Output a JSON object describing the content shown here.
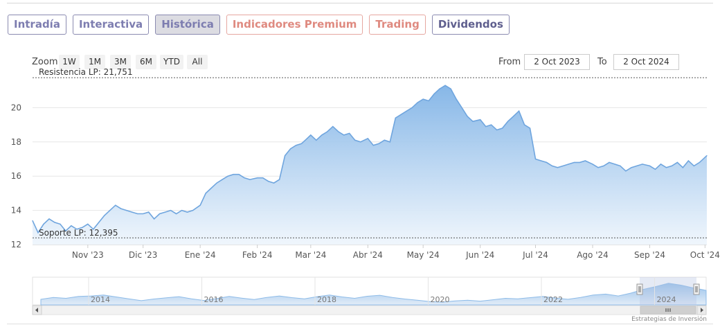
{
  "tabs": [
    {
      "label": "Intradía"
    },
    {
      "label": "Interactiva"
    },
    {
      "label": "Histórica",
      "active": true
    },
    {
      "label": "Indicadores Premium"
    },
    {
      "label": "Trading"
    },
    {
      "label": "Dividendos"
    }
  ],
  "zoom": {
    "label": "Zoom",
    "buttons": [
      "1W",
      "1M",
      "3M",
      "6M",
      "YTD",
      "All"
    ]
  },
  "range": {
    "from_label": "From",
    "from_value": "2 Oct 2023",
    "to_label": "To",
    "to_value": "2 Oct 2024"
  },
  "credits": "Estrategias de Inversión",
  "colors": {
    "series_line": "#6fa5de",
    "area_top": "#80b3e6",
    "area_bottom": "#eef5fc",
    "tab_blue": "#7d7db0",
    "tab_salmon": "#df8a80",
    "navigator_mask": "#b4c3e1"
  },
  "chart_data": {
    "type": "area",
    "title": "",
    "xlabel": "",
    "ylabel": "",
    "ylim": [
      12,
      22
    ],
    "yticks": [
      12,
      14,
      16,
      18,
      20
    ],
    "ytick_labels": [
      "12",
      "14",
      "16",
      "18",
      "20"
    ],
    "xlim": [
      "2023-10-02",
      "2024-10-02"
    ],
    "xticks": [
      "2023-11-01",
      "2023-12-01",
      "2024-01-01",
      "2024-02-01",
      "2024-03-01",
      "2024-04-01",
      "2024-05-01",
      "2024-06-01",
      "2024-07-01",
      "2024-08-01",
      "2024-09-01",
      "2024-10-01"
    ],
    "xtick_labels": [
      "Nov '23",
      "Dic '23",
      "Ene '24",
      "Feb '24",
      "Mar '24",
      "Abr '24",
      "May '24",
      "Jun '24",
      "Jul '24",
      "Ago '24",
      "Sep '24",
      "Oct '24"
    ],
    "grid": true,
    "legend": "none",
    "reference_lines": [
      {
        "label": "Resistencia LP: 21,751",
        "value": 21.751
      },
      {
        "label": "Soporte LP: 12,395",
        "value": 12.395
      }
    ],
    "series": [
      {
        "x": [
          "2023-10-02",
          "2023-10-05",
          "2023-10-08",
          "2023-10-11",
          "2023-10-14",
          "2023-10-17",
          "2023-10-20",
          "2023-10-23",
          "2023-10-26",
          "2023-10-29",
          "2023-11-01",
          "2023-11-04",
          "2023-11-07",
          "2023-11-10",
          "2023-11-13",
          "2023-11-16",
          "2023-11-19",
          "2023-11-22",
          "2023-11-25",
          "2023-11-28",
          "2023-12-01",
          "2023-12-04",
          "2023-12-07",
          "2023-12-10",
          "2023-12-13",
          "2023-12-16",
          "2023-12-19",
          "2023-12-22",
          "2023-12-25",
          "2023-12-28",
          "2024-01-01",
          "2024-01-04",
          "2024-01-07",
          "2024-01-10",
          "2024-01-13",
          "2024-01-16",
          "2024-01-19",
          "2024-01-22",
          "2024-01-25",
          "2024-01-28",
          "2024-02-01",
          "2024-02-04",
          "2024-02-07",
          "2024-02-10",
          "2024-02-13",
          "2024-02-16",
          "2024-02-19",
          "2024-02-22",
          "2024-02-25",
          "2024-02-28",
          "2024-03-01",
          "2024-03-04",
          "2024-03-07",
          "2024-03-10",
          "2024-03-13",
          "2024-03-16",
          "2024-03-19",
          "2024-03-22",
          "2024-03-25",
          "2024-03-28",
          "2024-04-01",
          "2024-04-04",
          "2024-04-07",
          "2024-04-10",
          "2024-04-13",
          "2024-04-16",
          "2024-04-19",
          "2024-04-22",
          "2024-04-25",
          "2024-04-28",
          "2024-05-01",
          "2024-05-04",
          "2024-05-07",
          "2024-05-10",
          "2024-05-13",
          "2024-05-16",
          "2024-05-19",
          "2024-05-22",
          "2024-05-25",
          "2024-05-28",
          "2024-06-01",
          "2024-06-04",
          "2024-06-07",
          "2024-06-10",
          "2024-06-13",
          "2024-06-16",
          "2024-06-19",
          "2024-06-22",
          "2024-06-25",
          "2024-06-28",
          "2024-07-01",
          "2024-07-04",
          "2024-07-07",
          "2024-07-10",
          "2024-07-13",
          "2024-07-16",
          "2024-07-19",
          "2024-07-22",
          "2024-07-25",
          "2024-07-28",
          "2024-08-01",
          "2024-08-04",
          "2024-08-07",
          "2024-08-10",
          "2024-08-13",
          "2024-08-16",
          "2024-08-19",
          "2024-08-22",
          "2024-08-25",
          "2024-08-28",
          "2024-09-01",
          "2024-09-04",
          "2024-09-07",
          "2024-09-10",
          "2024-09-13",
          "2024-09-16",
          "2024-09-19",
          "2024-09-22",
          "2024-09-25",
          "2024-09-28",
          "2024-10-02"
        ],
        "y": [
          13.4,
          12.7,
          13.2,
          13.5,
          13.3,
          13.2,
          12.8,
          13.1,
          12.9,
          13.0,
          13.2,
          12.9,
          13.3,
          13.7,
          14.0,
          14.3,
          14.1,
          14.0,
          13.9,
          13.8,
          13.8,
          13.9,
          13.5,
          13.8,
          13.9,
          14.0,
          13.8,
          14.0,
          13.9,
          14.0,
          14.3,
          15.0,
          15.3,
          15.6,
          15.8,
          16.0,
          16.1,
          16.1,
          15.9,
          15.8,
          15.9,
          15.9,
          15.7,
          15.6,
          15.8,
          17.2,
          17.6,
          17.8,
          17.9,
          18.2,
          18.4,
          18.1,
          18.4,
          18.6,
          18.9,
          18.6,
          18.4,
          18.5,
          18.1,
          18.0,
          18.2,
          17.8,
          17.9,
          18.1,
          18.0,
          19.4,
          19.6,
          19.8,
          20.0,
          20.3,
          20.5,
          20.4,
          20.8,
          21.1,
          21.3,
          21.1,
          20.5,
          20.0,
          19.5,
          19.2,
          19.3,
          18.9,
          19.0,
          18.7,
          18.8,
          19.2,
          19.5,
          19.8,
          19.0,
          18.8,
          17.0,
          16.9,
          16.8,
          16.6,
          16.5,
          16.6,
          16.7,
          16.8,
          16.8,
          16.9,
          16.7,
          16.5,
          16.6,
          16.8,
          16.7,
          16.6,
          16.3,
          16.5,
          16.6,
          16.7,
          16.6,
          16.4,
          16.7,
          16.5,
          16.6,
          16.8,
          16.5,
          16.9,
          16.6,
          16.8,
          17.2
        ]
      }
    ]
  },
  "navigator": {
    "year_labels": [
      "2014",
      "2016",
      "2018",
      "2020",
      "2022",
      "2024"
    ],
    "series_y": [
      13.8,
      14.6,
      14.2,
      15.0,
      15.2,
      15.6,
      14.8,
      14.0,
      13.2,
      13.9,
      14.4,
      14.9,
      14.0,
      13.3,
      14.1,
      15.0,
      14.3,
      13.7,
      14.6,
      15.2,
      14.5,
      14.0,
      14.9,
      15.6,
      14.8,
      14.2,
      15.1,
      15.5,
      14.6,
      13.9,
      13.4,
      12.8,
      12.6,
      13.1,
      13.4,
      13.0,
      13.6,
      14.2,
      14.0,
      14.5,
      15.0,
      14.3,
      13.8,
      14.6,
      15.6,
      16.0,
      15.2,
      16.4,
      18.0,
      19.2,
      20.6,
      19.8,
      18.6,
      17.6
    ]
  }
}
